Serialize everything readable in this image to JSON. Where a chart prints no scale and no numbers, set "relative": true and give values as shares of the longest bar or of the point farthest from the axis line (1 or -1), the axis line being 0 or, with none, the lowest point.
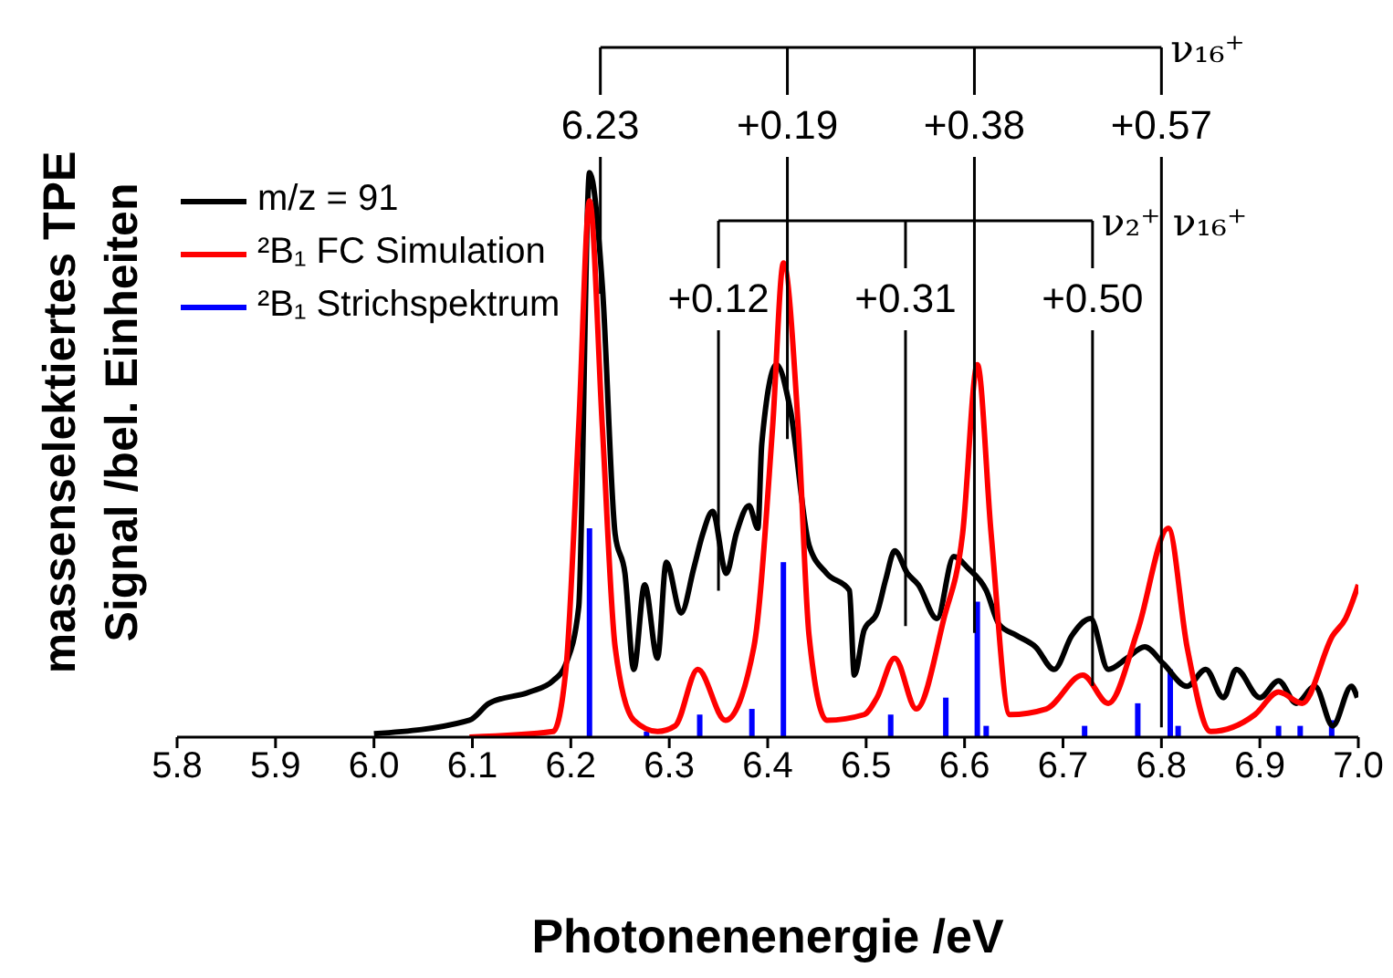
{
  "chart_data": {
    "type": "line",
    "relative": true,
    "xlabel": "Photonenenergie /eV",
    "ylabel": "massenselektiertes TPE Signal /bel. Einheiten",
    "xlim": [
      5.8,
      7.0
    ],
    "xticks": [
      5.8,
      5.9,
      {
        "value": 6.0,
        "label": "6.0"
      },
      6.1,
      6.2,
      6.3,
      6.4,
      6.5,
      6.6,
      6.7,
      6.8,
      6.9,
      {
        "value": 7.0,
        "label": "7.0"
      }
    ],
    "legend": "top left",
    "grid": false,
    "series": [
      {
        "name": "m/z = 91",
        "color": "#000000",
        "x": [
          6.0,
          6.097,
          6.117,
          6.158,
          6.182,
          6.195,
          6.208,
          6.219,
          6.232,
          6.245,
          6.255,
          6.264,
          6.275,
          6.288,
          6.297,
          6.312,
          6.325,
          6.334,
          6.344,
          6.358,
          6.368,
          6.381,
          6.39,
          6.394,
          6.409,
          6.423,
          6.442,
          6.46,
          6.483,
          6.488,
          6.498,
          6.511,
          6.52,
          6.529,
          6.542,
          6.553,
          6.572,
          6.589,
          6.603,
          6.622,
          6.635,
          6.653,
          6.672,
          6.691,
          6.709,
          6.728,
          6.746,
          6.765,
          6.783,
          6.802,
          6.826,
          6.845,
          6.863,
          6.876,
          6.9,
          6.919,
          6.937,
          6.956,
          6.974,
          6.993,
          6.999
        ],
        "values": [
          0.006,
          0.03,
          0.06,
          0.08,
          0.1,
          0.13,
          0.23,
          1.0,
          0.8,
          0.36,
          0.29,
          0.12,
          0.27,
          0.14,
          0.31,
          0.22,
          0.3,
          0.36,
          0.4,
          0.29,
          0.36,
          0.41,
          0.37,
          0.52,
          0.66,
          0.58,
          0.34,
          0.29,
          0.26,
          0.11,
          0.19,
          0.22,
          0.28,
          0.33,
          0.29,
          0.27,
          0.21,
          0.32,
          0.3,
          0.26,
          0.2,
          0.18,
          0.16,
          0.12,
          0.18,
          0.21,
          0.12,
          0.14,
          0.16,
          0.13,
          0.09,
          0.12,
          0.07,
          0.12,
          0.07,
          0.1,
          0.06,
          0.09,
          0.02,
          0.09,
          0.07
        ]
      },
      {
        "name": "²B₁ FC Simulation",
        "color": "#ff0000",
        "x": [
          6.097,
          6.182,
          6.195,
          6.208,
          6.219,
          6.232,
          6.245,
          6.264,
          6.288,
          6.306,
          6.329,
          6.357,
          6.386,
          6.405,
          6.416,
          6.431,
          6.442,
          6.46,
          6.498,
          6.511,
          6.529,
          6.551,
          6.579,
          6.598,
          6.613,
          6.627,
          6.646,
          6.683,
          6.72,
          6.746,
          6.776,
          6.807,
          6.826,
          6.85,
          6.895,
          6.919,
          6.943,
          6.974,
          6.987,
          7.0
        ],
        "values": [
          0,
          0.01,
          0.12,
          0.55,
          0.95,
          0.55,
          0.16,
          0.03,
          0.01,
          0.02,
          0.12,
          0.03,
          0.16,
          0.55,
          0.84,
          0.55,
          0.18,
          0.03,
          0.04,
          0.07,
          0.14,
          0.05,
          0.21,
          0.36,
          0.66,
          0.36,
          0.04,
          0.05,
          0.11,
          0.06,
          0.19,
          0.37,
          0.16,
          0.01,
          0.04,
          0.08,
          0.06,
          0.18,
          0.21,
          0.27
        ]
      },
      {
        "name": "²B₁ Strichspektrum",
        "type": "bar",
        "color": "#0000ff",
        "x": [
          6.219,
          6.277,
          6.331,
          6.384,
          6.416,
          6.525,
          6.581,
          6.613,
          6.622,
          6.722,
          6.776,
          6.809,
          6.817,
          6.919,
          6.941,
          6.973
        ],
        "values": [
          0.37,
          0.01,
          0.04,
          0.05,
          0.31,
          0.04,
          0.07,
          0.24,
          0.02,
          0.02,
          0.06,
          0.12,
          0.02,
          0.02,
          0.02,
          0.03
        ]
      }
    ],
    "ref_lines": [
      {
        "axis": "x",
        "value": 6.23
      },
      {
        "axis": "x",
        "value": 6.42
      },
      {
        "axis": "x",
        "value": 6.61
      },
      {
        "axis": "x",
        "value": 6.8
      },
      {
        "axis": "x",
        "value": 6.35
      },
      {
        "axis": "x",
        "value": 6.54
      },
      {
        "axis": "x",
        "value": 6.73
      }
    ],
    "annotations": [
      "6.23",
      "+0.19",
      "+0.38",
      "+0.57",
      "+0.12",
      "+0.31",
      "+0.50",
      "ν₁₆⁺",
      "ν₂⁺ ν₁₆⁺"
    ]
  }
}
